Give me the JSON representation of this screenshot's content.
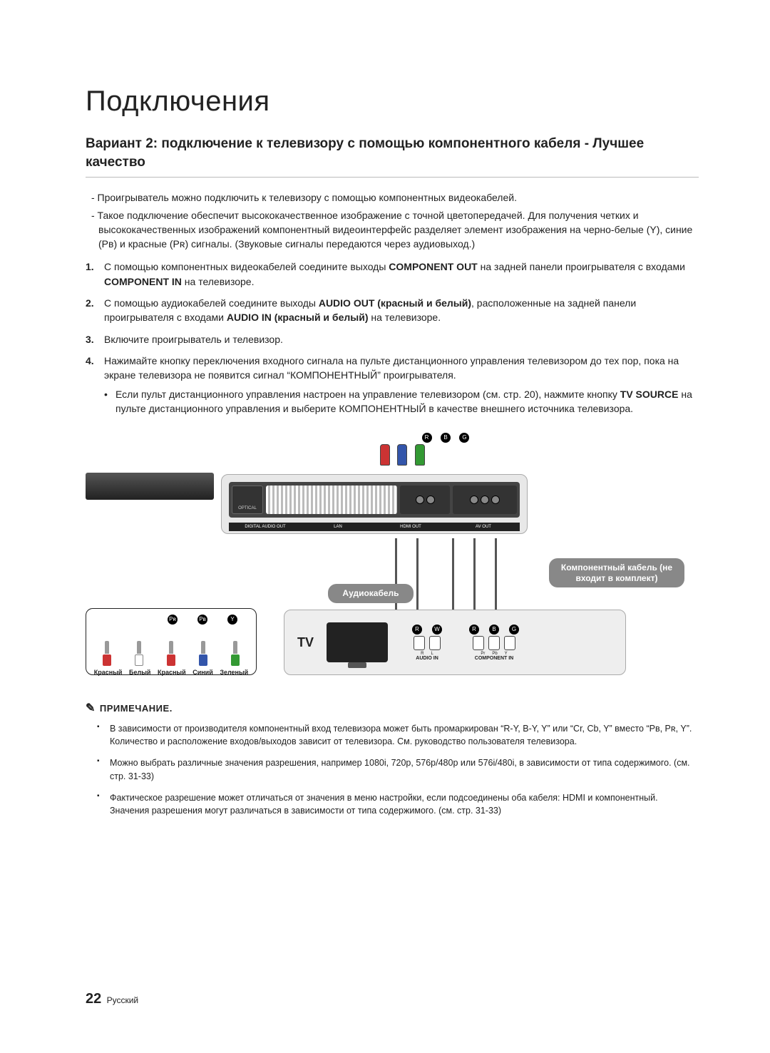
{
  "title": "Подключения",
  "subtitle": "Вариант 2: подключение к телевизору с помощью компонентного кабеля - Лучшее качество",
  "intro": [
    "- Проигрыватель можно подключить к телевизору с помощью компонентных видеокабелей.",
    "- Такое подключение обеспечит высококачественное изображение с точной цветопередачей. Для получения четких и высококачественных изображений компонентный видеоинтерфейс разделяет элемент изображения на черно-белые (Y), синие (Pʙ) и красные (Pʀ) сигналы. (Звуковые сигналы передаются через аудиовыход.)"
  ],
  "steps": [
    {
      "num": "1.",
      "html": "С помощью компонентных видеокабелей соедините выходы <b>COMPONENT OUT</b> на задней панели проигрывателя с входами <b>COMPONENT IN</b> на телевизоре."
    },
    {
      "num": "2.",
      "html": "С помощью аудиокабелей соедините выходы <b>AUDIO OUT (красный и белый)</b>, расположенные на задней панели проигрывателя с входами <b>AUDIO IN (красный и белый)</b> на телевизоре."
    },
    {
      "num": "3.",
      "html": "Включите проигрыватель и телевизор."
    },
    {
      "num": "4.",
      "html": "Нажимайте кнопку переключения входного сигнала на пульте дистанционного управления телевизором до тех пор, пока на экране телевизора не появится сигнал “КОМПОНЕНТНЫЙ” проигрывателя.",
      "bullet": "Если пульт дистанционного управления настроен на управление телевизором (см. стр. 20), нажмите кнопку <b>TV SOURCE</b> на пульте дистанционного управления и выберите КОМПОНЕНТНЫЙ в качестве внешнего источника телевизора."
    }
  ],
  "diagram": {
    "audio_label": "Аудиокабель",
    "component_label": "Компонентный кабель (не входит в комплект)",
    "tv_label": "TV",
    "tv_audio_caption": "AUDIO IN",
    "tv_comp_caption": "COMPONENT IN",
    "panel_labels": [
      "DIGITAL AUDIO OUT",
      "LAN",
      "HDMI OUT",
      "AV OUT"
    ],
    "optical_label": "OPTICAL",
    "audio_sub": [
      "R",
      "L"
    ],
    "comp_sub": [
      "Pr",
      "Pb",
      "Y"
    ],
    "legend_colors": [
      "Красный",
      "Белый",
      "Красный",
      "Синий",
      "Зеленый"
    ],
    "legend_dots": [
      "Pʀ",
      "Pʙ",
      "Y"
    ],
    "top_dots": [
      "R",
      "B",
      "G"
    ],
    "mid_dots": [
      "R",
      "W"
    ],
    "tv_mid_dots": [
      "R",
      "W",
      "R",
      "B",
      "G"
    ],
    "colors": {
      "red": "#c8352e",
      "white": "#ffffff",
      "blue": "#2f5ca8",
      "green": "#2e8a3a",
      "black": "#000000",
      "panel_bg": "#e8e8e8",
      "panel_dark": "#444444",
      "label_bg": "#8a8a8a"
    }
  },
  "notes_head": "ПРИМЕЧАНИЕ.",
  "notes": [
    "В зависимости от производителя компонентный вход телевизора может быть промаркирован “R-Y, B-Y, Y” или “Cr, Cb, Y” вместо “Pʙ, Pʀ, Y”. Количество и расположение входов/выходов зависит от телевизора. См. руководство пользователя телевизора.",
    "Можно выбрать различные значения разрешения, например 1080i, 720p, 576p/480p или 576i/480i, в зависимости от типа содержимого. (см. стр. 31-33)",
    "Фактическое разрешение может отличаться от значения в меню настройки, если подсоединены оба кабеля: HDMI и компонентный. Значения разрешения могут различаться в зависимости от типа содержимого. (см. стр. 31-33)"
  ],
  "footer": {
    "page": "22",
    "lang": "Русский"
  }
}
